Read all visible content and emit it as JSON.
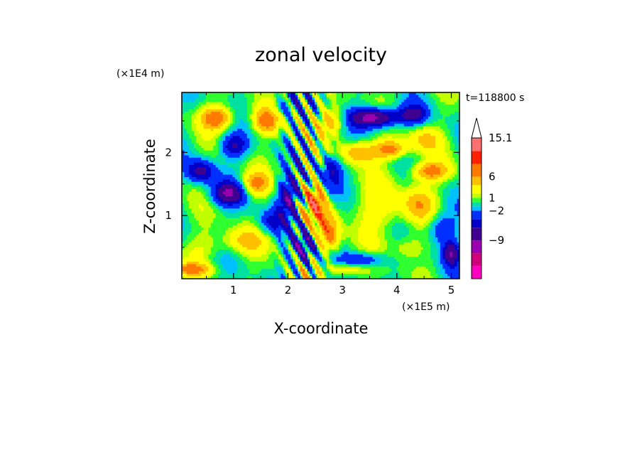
{
  "chart_data": {
    "type": "heatmap",
    "title": "zonal velocity",
    "xlabel": "X-coordinate",
    "ylabel": "Z-coordinate",
    "x_unit": "(×1E5 m)",
    "y_unit": "(×1E4 m)",
    "time_label": "t=118800 s",
    "xlim": [
      0.05,
      5.15
    ],
    "ylim": [
      0,
      2.95
    ],
    "x_ticks": [
      "1",
      "2",
      "3",
      "4",
      "5"
    ],
    "y_ticks": [
      "1",
      "2"
    ],
    "colorbar": {
      "labels": [
        "15.1",
        "6",
        "1",
        "−2",
        "−9"
      ],
      "label_values": [
        15.1,
        6,
        1,
        -2,
        -9
      ],
      "levels": [
        -15,
        -12,
        -9,
        -6,
        -4,
        -2,
        -1,
        0,
        1,
        2,
        4,
        6,
        9,
        12,
        15.1
      ],
      "colors": [
        "#ff00c0",
        "#d0007a",
        "#9a00b0",
        "#400090",
        "#0000c8",
        "#0030ff",
        "#00c0ff",
        "#00e0a0",
        "#30ff30",
        "#c0ff00",
        "#ffff00",
        "#ffc000",
        "#ff7a00",
        "#ff2000",
        "#ff7070",
        "#ffc0c0"
      ],
      "extend_max": true
    },
    "grid": false
  }
}
